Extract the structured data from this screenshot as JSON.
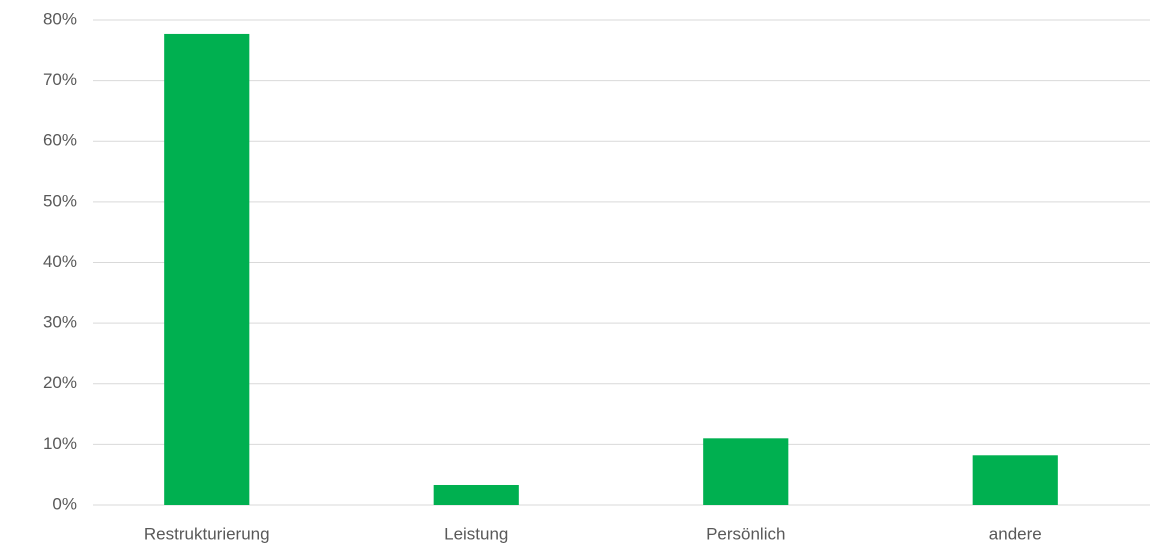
{
  "chart_data": {
    "type": "bar",
    "categories": [
      "Restrukturierung",
      "Leistung",
      "Persönlich",
      "andere"
    ],
    "values": [
      77.7,
      3.3,
      11.0,
      8.2
    ],
    "color": "#00b050",
    "ylim": [
      0,
      80
    ],
    "yticks": [
      {
        "value": 0,
        "label": "0%"
      },
      {
        "value": 10,
        "label": "10%"
      },
      {
        "value": 20,
        "label": "20%"
      },
      {
        "value": 30,
        "label": "30%"
      },
      {
        "value": 40,
        "label": "40%"
      },
      {
        "value": 50,
        "label": "50%"
      },
      {
        "value": 60,
        "label": "60%"
      },
      {
        "value": 70,
        "label": "70%"
      },
      {
        "value": 80,
        "label": "80%"
      }
    ],
    "grid": true
  }
}
